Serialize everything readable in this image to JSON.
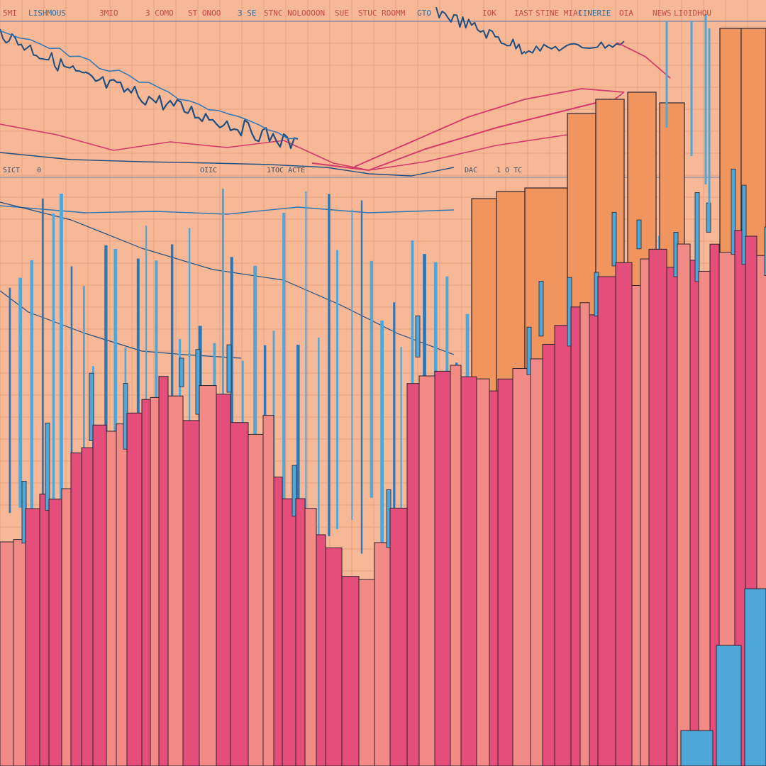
{
  "header": {
    "labels": [
      "5MI",
      "LISHMOUS",
      "3MIO",
      "3 COMO",
      "ST ONOO",
      "3 SE",
      "STNC NOLOOOON",
      "SUE",
      "STUC ROOMM",
      "GTO",
      "IOK",
      "IAST",
      "STINE MIAI",
      "CINERIE",
      "OIA",
      "NEWS",
      "LIOIDHOU"
    ]
  },
  "mid_axis": {
    "labels": [
      "5ICT",
      "0",
      "OIIC",
      "1TOC ACTE",
      "DAC",
      "1 O TC"
    ]
  },
  "colors": {
    "background": "#f6b896",
    "grid": "#e9a27f",
    "grid_dark": "#8a8fa8",
    "bar_pink": "#e54d7a",
    "bar_salmon": "#f28a86",
    "bar_orange": "#f0955e",
    "bar_blue": "#4fa6d8",
    "line_blue": "#2e77b5",
    "line_dark": "#1f4f80",
    "line_crimson": "#d3396b",
    "outline": "#2b2430"
  },
  "chart_data": {
    "type": "bar",
    "x": [],
    "y": [],
    "series": [
      {
        "values": []
      }
    ],
    "title": "",
    "xlabel": "",
    "ylabel": "",
    "grid": true
  }
}
